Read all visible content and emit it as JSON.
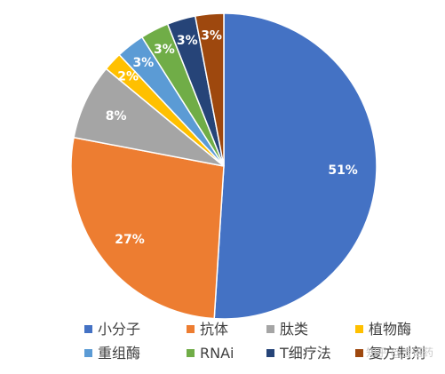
{
  "chart_data": {
    "type": "pie",
    "title": "",
    "start_angle_deg": 0,
    "direction": "clockwise",
    "slices": [
      {
        "label": "小分子",
        "percent_label": "51%",
        "value": 51,
        "color": "#4472C4",
        "label_color": "#ffffff"
      },
      {
        "label": "抗体",
        "percent_label": "27%",
        "value": 27,
        "color": "#ED7D31",
        "label_color": "#ffffff"
      },
      {
        "label": "肽类",
        "percent_label": "8%",
        "value": 8,
        "color": "#A5A5A5",
        "label_color": "#ffffff"
      },
      {
        "label": "植物酶",
        "percent_label": "2%",
        "value": 2,
        "color": "#FFC000",
        "label_color": "#ffffff"
      },
      {
        "label": "重组酶",
        "percent_label": "3%",
        "value": 3,
        "color": "#5B9BD5",
        "label_color": "#ffffff"
      },
      {
        "label": "RNAi",
        "percent_label": "3%",
        "value": 3,
        "color": "#70AD47",
        "label_color": "#ffffff"
      },
      {
        "label": "T细疗法",
        "percent_label": "3%",
        "value": 3,
        "color": "#264478",
        "label_color": "#ffffff"
      },
      {
        "label": "复方制剂",
        "percent_label": "3%",
        "value": 3,
        "color": "#9E480E",
        "label_color": "#ffffff"
      }
    ],
    "legend_position": "bottom"
  },
  "watermark": "知乎 @吉诺药"
}
